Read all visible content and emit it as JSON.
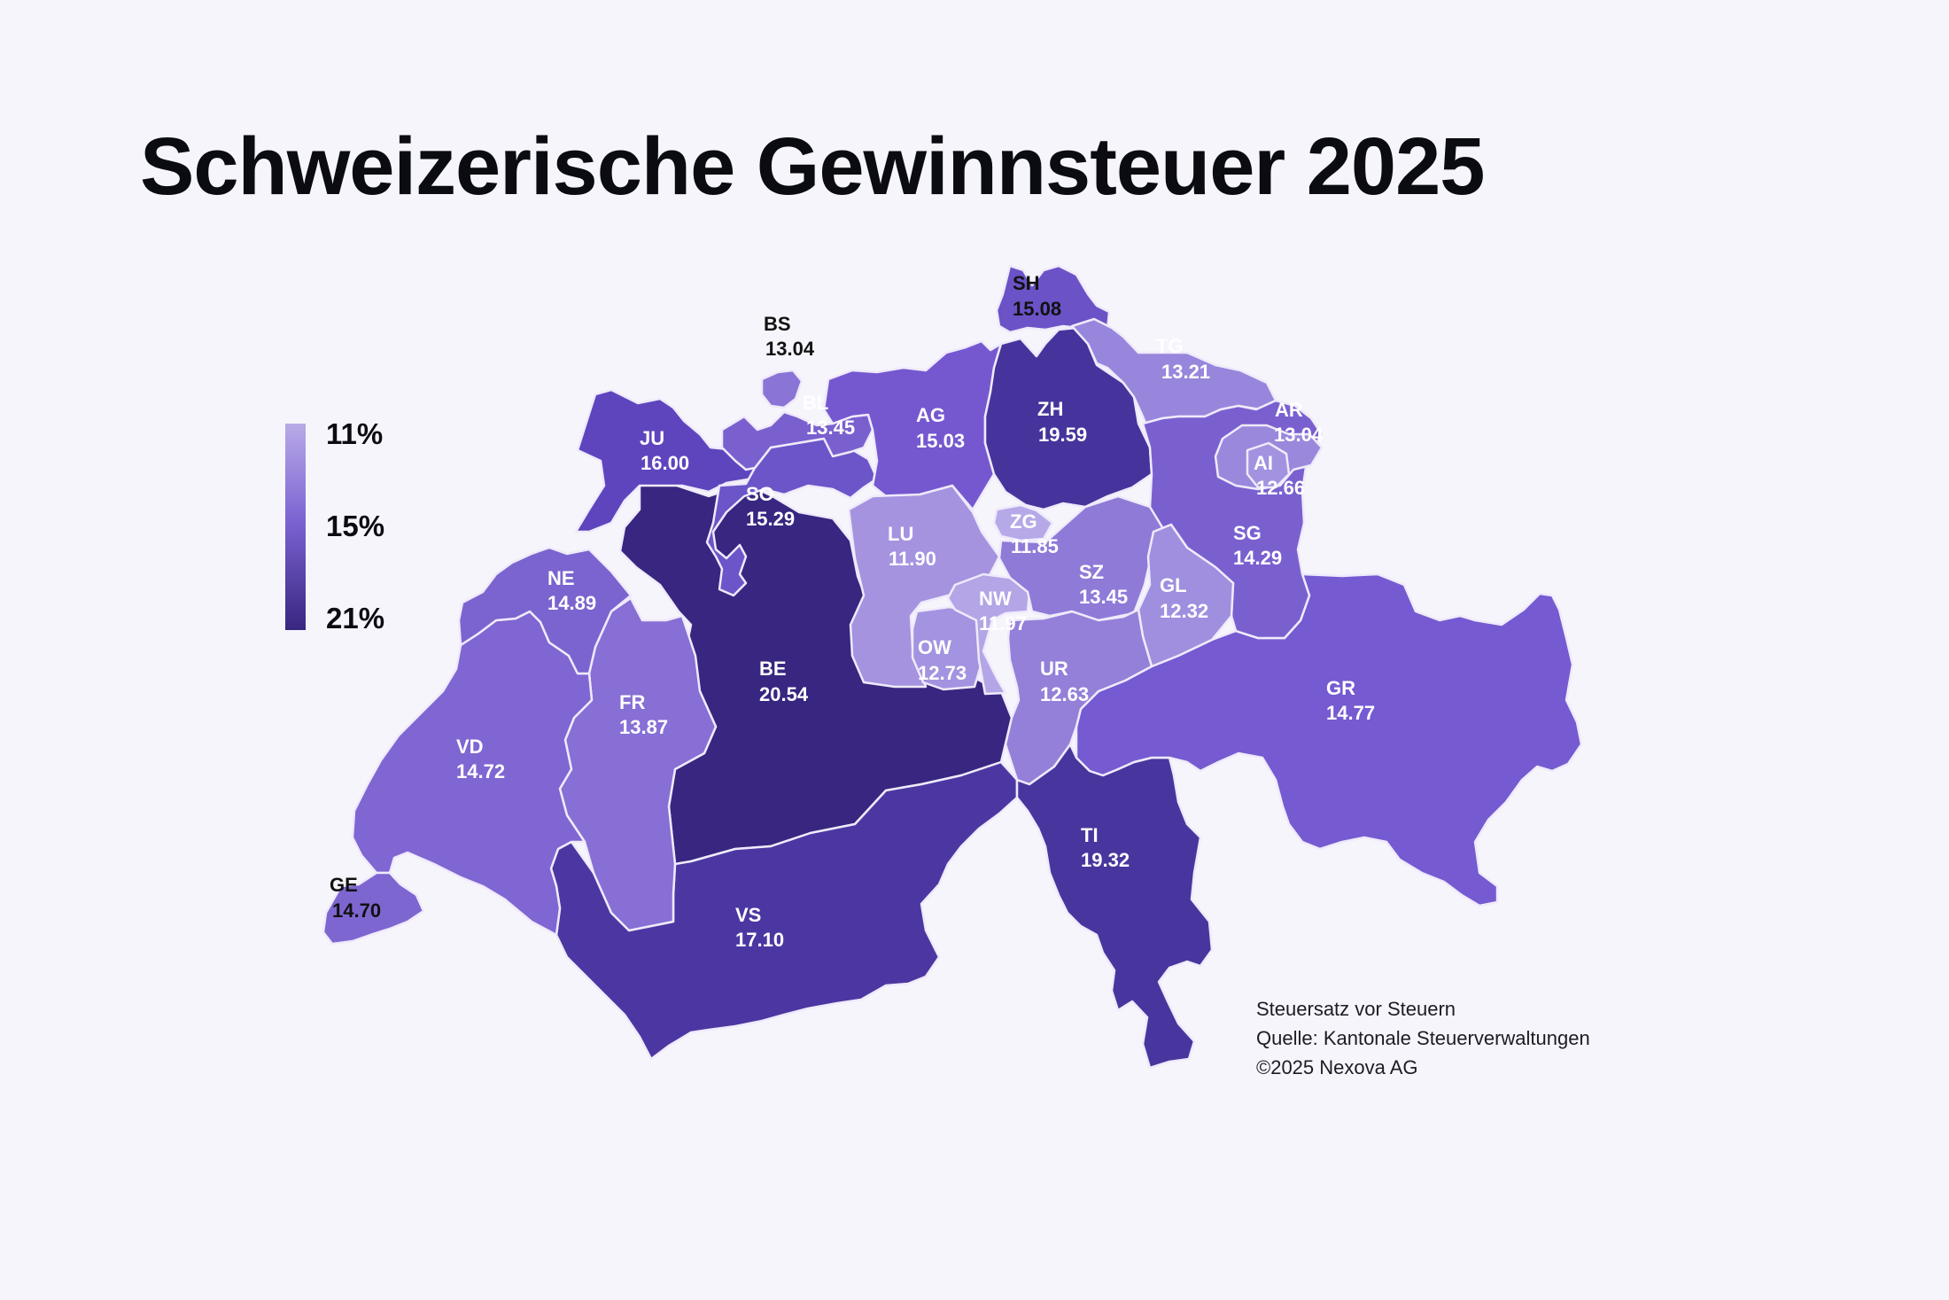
{
  "title": "Schweizerische Gewinnsteuer 2025",
  "legend": {
    "ticks": [
      "11%",
      "15%",
      "21%"
    ],
    "color_low": "#b9aae8",
    "color_mid": "#7b62d1",
    "color_high": "#382680"
  },
  "cantons": [
    {
      "code": "SH",
      "value": "15.08",
      "color": "#6b52c6"
    },
    {
      "code": "BS",
      "value": "13.04",
      "color": "#8a74d6"
    },
    {
      "code": "TG",
      "value": "13.21",
      "color": "#9886dc"
    },
    {
      "code": "BL",
      "value": "13.45",
      "color": "#7a60cf"
    },
    {
      "code": "AG",
      "value": "15.03",
      "color": "#7558d0"
    },
    {
      "code": "ZH",
      "value": "19.59",
      "color": "#46349c"
    },
    {
      "code": "AR",
      "value": "13.04",
      "color": "#9a88dc"
    },
    {
      "code": "JU",
      "value": "16.00",
      "color": "#5e45be"
    },
    {
      "code": "AI",
      "value": "12.66",
      "color": "#a292e0"
    },
    {
      "code": "SO",
      "value": "15.29",
      "color": "#6c55c8"
    },
    {
      "code": "ZG",
      "value": "11.85",
      "color": "#b7a8e8"
    },
    {
      "code": "LU",
      "value": "11.90",
      "color": "#a593e0"
    },
    {
      "code": "SG",
      "value": "14.29",
      "color": "#7a60cf"
    },
    {
      "code": "SZ",
      "value": "13.45",
      "color": "#8f7ad8"
    },
    {
      "code": "NE",
      "value": "14.89",
      "color": "#7b64cf"
    },
    {
      "code": "GL",
      "value": "12.32",
      "color": "#a08fdf"
    },
    {
      "code": "NW",
      "value": "11.97",
      "color": "#b4a5e6"
    },
    {
      "code": "OW",
      "value": "12.73",
      "color": "#a493e0"
    },
    {
      "code": "BE",
      "value": "20.54",
      "color": "#382680"
    },
    {
      "code": "UR",
      "value": "12.63",
      "color": "#9480d9"
    },
    {
      "code": "GR",
      "value": "14.77",
      "color": "#755ad1"
    },
    {
      "code": "FR",
      "value": "13.87",
      "color": "#876fd5"
    },
    {
      "code": "VD",
      "value": "14.72",
      "color": "#8066d2"
    },
    {
      "code": "TI",
      "value": "19.32",
      "color": "#48369e"
    },
    {
      "code": "VS",
      "value": "17.10",
      "color": "#4c37a2"
    },
    {
      "code": "GE",
      "value": "14.70",
      "color": "#7e66d1"
    }
  ],
  "notes": [
    "Steuersatz vor Steuern",
    "Quelle: Kantonale Steuerverwaltungen",
    "©2025 Nexova AG"
  ]
}
